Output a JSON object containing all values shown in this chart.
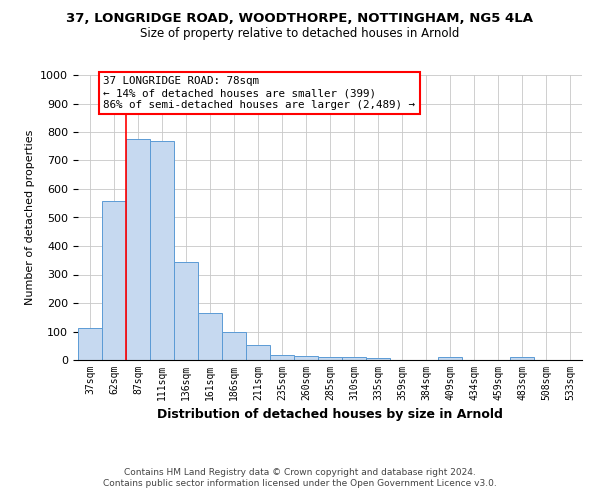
{
  "title1": "37, LONGRIDGE ROAD, WOODTHORPE, NOTTINGHAM, NG5 4LA",
  "title2": "Size of property relative to detached houses in Arnold",
  "xlabel": "Distribution of detached houses by size in Arnold",
  "ylabel": "Number of detached properties",
  "categories": [
    "37sqm",
    "62sqm",
    "87sqm",
    "111sqm",
    "136sqm",
    "161sqm",
    "186sqm",
    "211sqm",
    "235sqm",
    "260sqm",
    "285sqm",
    "310sqm",
    "335sqm",
    "359sqm",
    "384sqm",
    "409sqm",
    "434sqm",
    "459sqm",
    "483sqm",
    "508sqm",
    "533sqm"
  ],
  "values": [
    112,
    557,
    775,
    770,
    345,
    165,
    97,
    54,
    18,
    13,
    10,
    10,
    8,
    0,
    0,
    9,
    0,
    0,
    9,
    0,
    0
  ],
  "bar_color": "#c6d9f0",
  "bar_edge_color": "#5b9bd5",
  "ann_line1": "37 LONGRIDGE ROAD: 78sqm",
  "ann_line2": "← 14% of detached houses are smaller (399)",
  "ann_line3": "86% of semi-detached houses are larger (2,489) →",
  "red_line_x": 1.5,
  "ylim": [
    0,
    1000
  ],
  "yticks": [
    0,
    100,
    200,
    300,
    400,
    500,
    600,
    700,
    800,
    900,
    1000
  ],
  "footer1": "Contains HM Land Registry data © Crown copyright and database right 2024.",
  "footer2": "Contains public sector information licensed under the Open Government Licence v3.0.",
  "background_color": "#ffffff",
  "grid_color": "#c8c8c8"
}
